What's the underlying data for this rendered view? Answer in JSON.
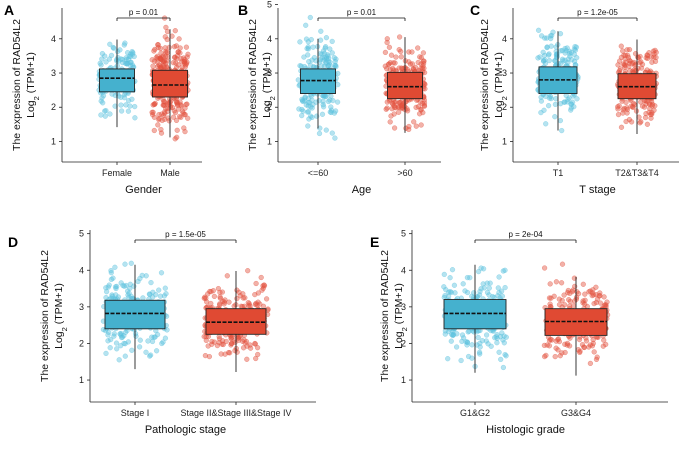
{
  "figure": {
    "colors": {
      "group1_box": "#45B1CE",
      "group1_point": "#5BC2DD",
      "group2_box": "#E04A33",
      "group2_point": "#E3513E",
      "axis": "#222222"
    }
  },
  "chart_data": [
    {
      "panel": "A",
      "type": "box",
      "xlabel": "Gender",
      "ylabel_line1": "The expression of RAD54L2",
      "ylabel_line2": "Log",
      "ylabel_sub": "2",
      "ylabel_tail": " (TPM+1)",
      "ylim": [
        0.4,
        4.9
      ],
      "yticks": [
        1,
        2,
        3,
        4
      ],
      "categories": [
        "Female",
        "Male"
      ],
      "pvalue_label": "p = 0.01",
      "series": [
        {
          "name": "Female",
          "n": 160,
          "q1": 2.45,
          "median": 2.85,
          "q3": 3.12,
          "whisker_low": 1.42,
          "whisker_high": 3.98,
          "points_min": 1.35,
          "points_max": 4.0,
          "point_sd": 0.48
        },
        {
          "name": "Male",
          "n": 300,
          "q1": 2.3,
          "median": 2.65,
          "q3": 3.08,
          "whisker_low": 1.12,
          "whisker_high": 4.28,
          "points_min": 0.55,
          "points_max": 4.75,
          "point_sd": 0.6
        }
      ]
    },
    {
      "panel": "B",
      "type": "box",
      "xlabel": "Age",
      "ylabel_line1": "The expression of RAD54L2",
      "ylabel_line2": "Log",
      "ylabel_sub": "2",
      "ylabel_tail": " (TPM+1)",
      "ylim": [
        0.4,
        4.9
      ],
      "yticks": [
        1,
        2,
        3,
        4,
        5
      ],
      "categories": [
        "<=60",
        ">60"
      ],
      "pvalue_label": "p = 0.01",
      "series": [
        {
          "name": "<=60",
          "n": 220,
          "q1": 2.4,
          "median": 2.78,
          "q3": 3.12,
          "whisker_low": 1.38,
          "whisker_high": 4.0,
          "points_min": 1.05,
          "points_max": 4.75,
          "point_sd": 0.55
        },
        {
          "name": ">60",
          "n": 240,
          "q1": 2.25,
          "median": 2.6,
          "q3": 3.02,
          "whisker_low": 1.25,
          "whisker_high": 4.05,
          "points_min": 0.6,
          "points_max": 4.35,
          "point_sd": 0.55
        }
      ]
    },
    {
      "panel": "C",
      "type": "box",
      "xlabel": "T stage",
      "ylabel_line1": "The expression of RAD54L2",
      "ylabel_line2": "Log",
      "ylabel_sub": "2",
      "ylabel_tail": " (TPM+1)",
      "ylim": [
        0.4,
        4.9
      ],
      "yticks": [
        1,
        2,
        3,
        4
      ],
      "categories": [
        "T1",
        "T2&T3&T4"
      ],
      "pvalue_label": "p = 1.2e-05",
      "series": [
        {
          "name": "T1",
          "n": 230,
          "q1": 2.4,
          "median": 2.8,
          "q3": 3.18,
          "whisker_low": 1.32,
          "whisker_high": 4.22,
          "points_min": 1.05,
          "points_max": 4.25,
          "point_sd": 0.52
        },
        {
          "name": "T2&T3&T4",
          "n": 230,
          "q1": 2.25,
          "median": 2.6,
          "q3": 2.98,
          "whisker_low": 1.22,
          "whisker_high": 3.98,
          "points_min": 0.6,
          "points_max": 4.75,
          "point_sd": 0.52
        }
      ]
    },
    {
      "panel": "D",
      "type": "box",
      "xlabel": "Pathologic stage",
      "ylabel_line1": "The expression of RAD54L2",
      "ylabel_line2": "Log",
      "ylabel_sub": "2",
      "ylabel_tail": " (TPM+1)",
      "ylim": [
        0.4,
        5.1
      ],
      "yticks": [
        1,
        2,
        3,
        4,
        5
      ],
      "categories": [
        "Stage I",
        "Stage II&Stage III&Stage IV"
      ],
      "pvalue_label": "p = 1.5e-05",
      "series": [
        {
          "name": "Stage I",
          "n": 230,
          "q1": 2.4,
          "median": 2.82,
          "q3": 3.18,
          "whisker_low": 1.3,
          "whisker_high": 4.15,
          "points_min": 1.1,
          "points_max": 4.2,
          "point_sd": 0.52
        },
        {
          "name": "Stage II&Stage III&Stage IV",
          "n": 230,
          "q1": 2.25,
          "median": 2.58,
          "q3": 2.95,
          "whisker_low": 1.22,
          "whisker_high": 3.98,
          "points_min": 0.6,
          "points_max": 4.75,
          "point_sd": 0.52
        }
      ]
    },
    {
      "panel": "E",
      "type": "box",
      "xlabel": "Histologic grade",
      "ylabel_line1": "The expression of RAD54L2",
      "ylabel_line2": "Log",
      "ylabel_sub": "2",
      "ylabel_tail": " (TPM+1)",
      "ylim": [
        0.4,
        5.1
      ],
      "yticks": [
        1,
        2,
        3,
        4,
        5
      ],
      "categories": [
        "G1&G2",
        "G3&G4"
      ],
      "pvalue_label": "p = 2e-04",
      "series": [
        {
          "name": "G1&G2",
          "n": 240,
          "q1": 2.4,
          "median": 2.82,
          "q3": 3.2,
          "whisker_low": 1.2,
          "whisker_high": 4.15,
          "points_min": 1.0,
          "points_max": 4.75,
          "point_sd": 0.55
        },
        {
          "name": "G3&G4",
          "n": 230,
          "q1": 2.22,
          "median": 2.6,
          "q3": 2.95,
          "whisker_low": 1.12,
          "whisker_high": 3.82,
          "points_min": 0.6,
          "points_max": 4.25,
          "point_sd": 0.52
        }
      ]
    }
  ]
}
